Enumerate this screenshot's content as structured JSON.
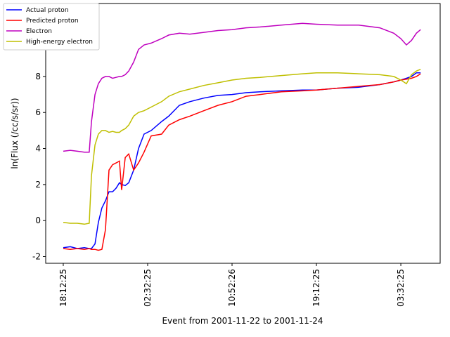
{
  "chart_data": {
    "type": "line",
    "xlabel": "Event from 2001-11-22 to 2001-11-24",
    "ylabel": "ln(Flux (/cc/s/sr))",
    "x": [
      0,
      42,
      83,
      125,
      154,
      167,
      188,
      208,
      229,
      250,
      271,
      292,
      313,
      333,
      346,
      367,
      388,
      417,
      446,
      479,
      521,
      583,
      625,
      688,
      750,
      833,
      917,
      1000,
      1083,
      1167,
      1292,
      1417,
      1500,
      1625,
      1750,
      1875,
      1958,
      2000,
      2033,
      2063,
      2092,
      2117
    ],
    "xlim": [
      -104,
      2233
    ],
    "xticks": [
      {
        "value": 0,
        "label": "18:12:25"
      },
      {
        "value": 500,
        "label": "02:32:25"
      },
      {
        "value": 1000,
        "label": "10:52:26"
      },
      {
        "value": 1500,
        "label": "19:12:25"
      },
      {
        "value": 2000,
        "label": "03:32:25"
      }
    ],
    "ylim": [
      -2.37,
      12.05
    ],
    "yticks": [
      -2,
      0,
      2,
      4,
      6,
      8
    ],
    "legend": "upper left",
    "series": [
      {
        "name": "Actual proton",
        "color": "#0000ff",
        "values": [
          -1.5,
          -1.45,
          -1.55,
          -1.5,
          -1.55,
          -1.55,
          -1.3,
          -0.1,
          0.7,
          1.1,
          1.6,
          1.6,
          1.8,
          2.1,
          2.0,
          1.95,
          2.1,
          2.8,
          4.0,
          4.8,
          5.0,
          5.5,
          5.8,
          6.4,
          6.6,
          6.8,
          6.95,
          7.0,
          7.1,
          7.15,
          7.2,
          7.25,
          7.25,
          7.35,
          7.4,
          7.55,
          7.7,
          7.8,
          7.9,
          8.0,
          8.2,
          8.2
        ]
      },
      {
        "name": "Predicted proton",
        "color": "#ff0000",
        "values": [
          -1.55,
          -1.6,
          -1.55,
          -1.6,
          -1.55,
          -1.6,
          -1.6,
          -1.65,
          -1.6,
          -0.5,
          2.8,
          3.1,
          3.2,
          3.3,
          1.7,
          3.5,
          3.7,
          2.8,
          3.2,
          3.8,
          4.7,
          4.8,
          5.3,
          5.6,
          5.8,
          6.1,
          6.4,
          6.6,
          6.9,
          7.0,
          7.15,
          7.2,
          7.25,
          7.35,
          7.45,
          7.55,
          7.7,
          7.8,
          7.85,
          7.9,
          8.0,
          8.15
        ]
      },
      {
        "name": "Electron",
        "color": "#bf00bf",
        "values": [
          3.85,
          3.9,
          3.85,
          3.8,
          3.8,
          5.5,
          7.0,
          7.6,
          7.9,
          8.0,
          8.0,
          7.9,
          7.95,
          8.0,
          8.0,
          8.1,
          8.3,
          8.8,
          9.5,
          9.75,
          9.85,
          10.1,
          10.3,
          10.4,
          10.35,
          10.45,
          10.55,
          10.6,
          10.7,
          10.75,
          10.85,
          10.95,
          10.9,
          10.85,
          10.85,
          10.7,
          10.4,
          10.1,
          9.75,
          10.0,
          10.4,
          10.6
        ]
      },
      {
        "name": "High-energy electron",
        "color": "#bfbf00",
        "values": [
          -0.1,
          -0.15,
          -0.15,
          -0.2,
          -0.15,
          2.5,
          4.2,
          4.8,
          5.0,
          5.0,
          4.9,
          4.95,
          4.9,
          4.9,
          5.0,
          5.1,
          5.3,
          5.8,
          6.0,
          6.1,
          6.3,
          6.6,
          6.9,
          7.15,
          7.3,
          7.5,
          7.65,
          7.8,
          7.9,
          7.95,
          8.05,
          8.15,
          8.2,
          8.2,
          8.15,
          8.1,
          8.0,
          7.8,
          7.6,
          8.1,
          8.3,
          8.4
        ]
      }
    ]
  }
}
